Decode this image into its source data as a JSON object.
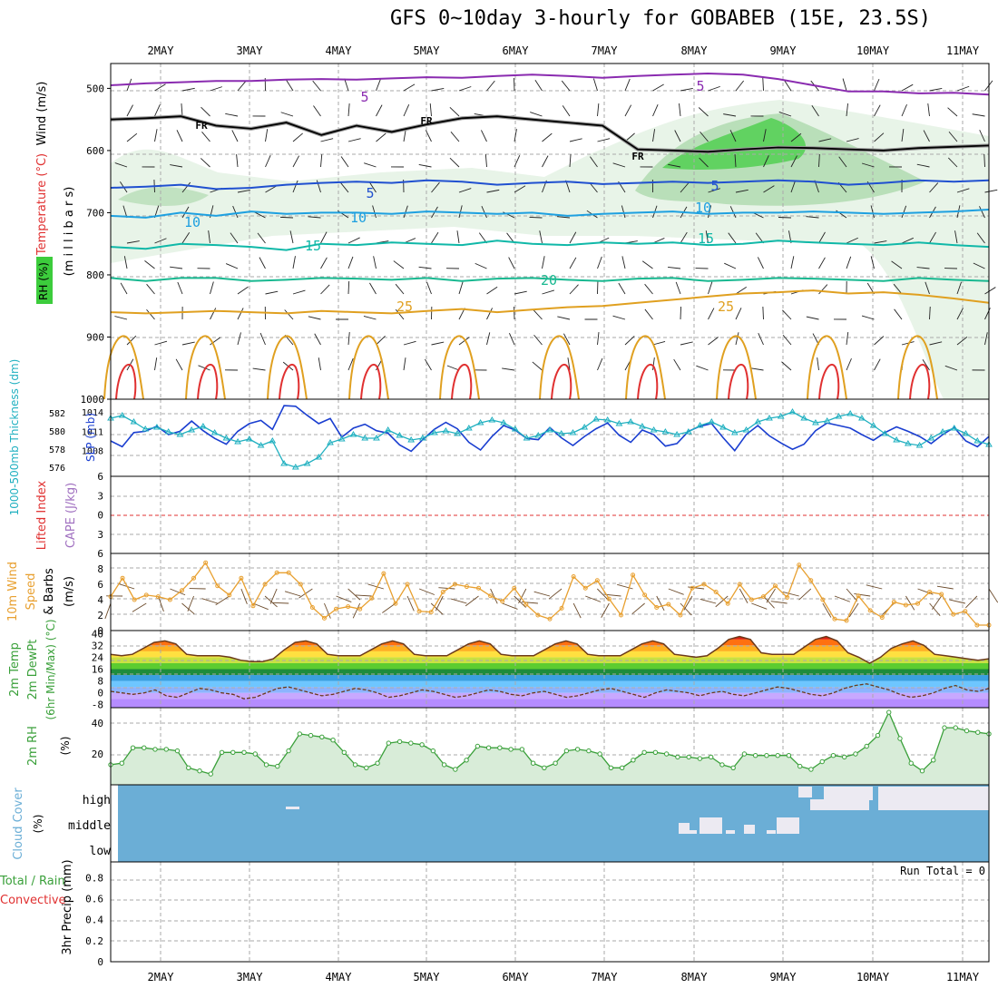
{
  "title": "GFS 0~10day 3-hourly for GOBABEB (15E, 23.5S)",
  "colors": {
    "purple": "#8a2bb0",
    "black": "#000000",
    "blue": "#2050d0",
    "lightblue": "#1ea0e0",
    "teal": "#10b8a8",
    "green": "#18b890",
    "orange": "#e0a020",
    "red": "#e03030",
    "rh_light": "#e8f4e8",
    "rh_mid": "#9ad09a",
    "rh_dark": "#3ccc3c",
    "cloud": "#6baed6",
    "slp": "#1a3ed0",
    "thickness": "#20b0c0",
    "wind": "#e8a030",
    "rh2m": "#3aa03a"
  },
  "chart_data": {
    "type": "meteogram",
    "date_labels": [
      "2MAY",
      "3MAY",
      "4MAY",
      "5MAY",
      "6MAY",
      "7MAY",
      "8MAY",
      "9MAY",
      "10MAY",
      "11MAY"
    ],
    "panels": {
      "upper": {
        "left_labels": {
          "wind": "Wind (m/s)",
          "temperature": "Temperature (°C)",
          "rh": "RH (%)",
          "pressure_axis": "(m i l l i b a r s)"
        },
        "y_ticks": [
          "500",
          "600",
          "700",
          "800",
          "900",
          "1000"
        ],
        "ylim": [
          460,
          1000
        ],
        "contour_labels": {
          "purple": [
            "5",
            "5"
          ],
          "freezing": [
            "FR",
            "FR",
            "FR"
          ],
          "blue": [
            "5",
            "5"
          ],
          "lightblue": [
            "10",
            "10",
            "10"
          ],
          "teal": [
            "15",
            "15"
          ],
          "green": [
            "20"
          ],
          "orange": [
            "25",
            "25"
          ]
        },
        "contours": [
          {
            "color": "purple",
            "values": [
              495,
              492,
              490,
              488,
              488,
              486,
              485,
              486,
              484,
              482,
              483,
              480,
              478,
              480,
              483,
              480,
              478,
              476,
              478,
              485,
              495,
              505,
              505,
              508,
              507,
              510
            ]
          },
          {
            "color": "blue",
            "values": [
              660,
              658,
              655,
              662,
              660,
              655,
              652,
              650,
              652,
              648,
              650,
              655,
              652,
              650,
              654,
              652,
              650,
              652,
              650,
              648,
              650,
              655,
              652,
              648,
              650,
              648
            ]
          },
          {
            "color": "lightblue",
            "values": [
              705,
              708,
              700,
              705,
              698,
              702,
              700,
              700,
              702,
              698,
              700,
              702,
              700,
              705,
              702,
              700,
              698,
              702,
              700,
              700,
              698,
              700,
              702,
              700,
              698,
              695
            ]
          },
          {
            "color": "teal",
            "values": [
              755,
              758,
              750,
              752,
              755,
              760,
              750,
              752,
              748,
              750,
              752,
              745,
              750,
              752,
              748,
              750,
              748,
              752,
              750,
              745,
              748,
              750,
              752,
              748,
              752,
              755
            ]
          },
          {
            "color": "green",
            "values": [
              805,
              810,
              805,
              805,
              810,
              808,
              805,
              806,
              808,
              805,
              810,
              806,
              805,
              808,
              810,
              806,
              805,
              810,
              808,
              805,
              806,
              808,
              810,
              805,
              808,
              810
            ]
          },
          {
            "color": "orange",
            "values": [
              860,
              862,
              860,
              858,
              860,
              862,
              858,
              860,
              862,
              858,
              855,
              860,
              856,
              852,
              850,
              845,
              840,
              835,
              830,
              828,
              825,
              830,
              828,
              832,
              838,
              845
            ]
          }
        ],
        "freezing_level": [
          550,
          548,
          545,
          560,
          565,
          555,
          575,
          560,
          570,
          558,
          548,
          545,
          550,
          555,
          560,
          598,
          600,
          602,
          598,
          595,
          596,
          598,
          600,
          596,
          594,
          592
        ]
      },
      "slp_thickness": {
        "left_labels": {
          "thickness": "1000-500mb Thickness (dm)",
          "slp": "SLP (mb)"
        },
        "thickness_ticks": [
          "576",
          "578",
          "580",
          "582"
        ],
        "slp_ticks": [
          "1008",
          "1011",
          "1014"
        ],
        "ylim_slp": [
          1004,
          1016
        ],
        "slp": [
          1009.5,
          1008.6,
          1010.8,
          1011.0,
          1011.8,
          1010.5,
          1011.0,
          1012.6,
          1011.1,
          1009.9,
          1009.0,
          1011.0,
          1012.2,
          1012.7,
          1011.3,
          1015.0,
          1014.9,
          1013.5,
          1012.2,
          1013.0,
          1010.1,
          1011.5,
          1012.1,
          1011.1,
          1010.7,
          1008.9,
          1007.9,
          1009.7,
          1011.3,
          1012.4,
          1011.4,
          1009.3,
          1008.1,
          1010.2,
          1011.9,
          1011.2,
          1009.9,
          1009.7,
          1011.6,
          1010.0,
          1008.8,
          1010.2,
          1011.4,
          1012.3,
          1010.4,
          1009.3,
          1011.2,
          1010.5,
          1008.7,
          1009.1,
          1011.0,
          1011.8,
          1012.2,
          1010.0,
          1008.0,
          1010.5,
          1011.9,
          1010.3,
          1009.2,
          1008.2,
          1009.0,
          1011.1,
          1012.3,
          1011.9,
          1011.5,
          1010.5,
          1009.6,
          1010.8,
          1011.7,
          1011.0,
          1010.2,
          1009.1,
          1010.5,
          1011.6,
          1009.5,
          1008.6,
          1010.2
        ],
        "thickness": [
          581.4,
          581.7,
          581.0,
          580.2,
          580.4,
          579.9,
          579.6,
          580.1,
          580.5,
          579.8,
          579.2,
          578.8,
          579.1,
          578.4,
          578.9,
          576.4,
          576.0,
          576.4,
          577.1,
          578.7,
          579.1,
          579.6,
          579.2,
          579.2,
          580.1,
          579.5,
          579.0,
          579.2,
          579.8,
          580.0,
          579.7,
          580.3,
          580.9,
          581.2,
          580.9,
          580.2,
          579.2,
          579.5,
          580.1,
          579.7,
          579.8,
          580.4,
          581.3,
          581.2,
          580.8,
          581.0,
          580.5,
          580.1,
          579.9,
          579.6,
          579.9,
          580.6,
          581.0,
          580.4,
          579.8,
          580.1,
          581.0,
          581.4,
          581.6,
          582.1,
          581.4,
          580.9,
          581.1,
          581.6,
          581.9,
          581.4,
          580.6,
          579.7,
          579.0,
          578.6,
          578.4,
          579.2,
          579.9,
          580.3,
          579.7,
          578.9,
          578.5
        ]
      },
      "cape_li": {
        "left_labels": {
          "li": "Lifted Index",
          "cape": "CAPE (J/kg)"
        },
        "y_ticks": [
          "6",
          "3",
          "0",
          "3",
          "6"
        ],
        "ylim": [
          -6,
          6
        ]
      },
      "wind10m": {
        "left_labels": {
          "title": "10m Wind",
          "speed": "Speed",
          "barbs": "& Barbs",
          "unit": "(m/s)"
        },
        "y_ticks": [
          "0",
          "2",
          "4",
          "6",
          "8"
        ],
        "ylim": [
          0,
          10
        ],
        "speed": [
          4.4,
          6.8,
          4.0,
          4.6,
          4.4,
          4.0,
          5.2,
          6.8,
          8.8,
          5.8,
          4.6,
          6.8,
          3.2,
          6.0,
          7.5,
          7.5,
          6.0,
          3.0,
          1.6,
          2.8,
          3.1,
          2.8,
          4.2,
          7.4,
          3.5,
          6.0,
          2.5,
          2.4,
          5.0,
          6.0,
          5.7,
          5.5,
          4.5,
          3.8,
          5.5,
          3.4,
          2.0,
          1.5,
          2.9,
          7.0,
          5.5,
          6.5,
          4.1,
          2.0,
          7.2,
          4.6,
          3.0,
          3.4,
          2.0,
          5.5,
          6.0,
          5.0,
          3.5,
          6.0,
          4.0,
          4.4,
          5.8,
          4.3,
          8.5,
          6.5,
          4.0,
          1.5,
          1.3,
          4.5,
          2.6,
          1.7,
          3.7,
          3.3,
          3.5,
          5.0,
          4.7,
          2.1,
          2.5,
          0.7,
          0.7
        ]
      },
      "temp2m": {
        "left_labels": {
          "temp": "2m Temp",
          "dewpt": "2m DewPt",
          "minmax": "(6hr Min/Max) (°C)"
        },
        "y_ticks": [
          "40",
          "32",
          "24",
          "16",
          "8",
          "0",
          "-8"
        ],
        "ylim": [
          -10,
          42
        ],
        "temp": [
          26,
          25,
          26,
          30,
          34,
          35,
          33,
          26,
          25,
          25,
          25,
          24,
          22,
          21,
          21,
          23,
          29,
          34,
          35,
          33,
          26,
          25,
          25,
          25,
          29,
          33,
          35,
          33,
          26,
          25,
          25,
          25,
          29,
          33,
          35,
          33,
          26,
          25,
          25,
          25,
          29,
          33,
          35,
          33,
          26,
          25,
          25,
          25,
          29,
          33,
          35,
          33,
          26,
          25,
          24,
          25,
          30,
          36,
          38,
          36,
          27,
          26,
          26,
          26,
          31,
          36,
          38,
          35,
          27,
          24,
          20,
          24,
          30,
          33,
          35,
          32,
          26,
          25,
          24,
          23,
          22,
          23
        ],
        "dewpoint": [
          1,
          0,
          -1,
          0,
          2,
          -2,
          -3,
          0,
          3,
          2,
          0,
          -1,
          -4,
          -3,
          0,
          3,
          4,
          2,
          0,
          -2,
          -1,
          1,
          3,
          2,
          0,
          -3,
          -2,
          0,
          2,
          1,
          -1,
          -3,
          -2,
          0,
          2,
          1,
          -1,
          -2,
          0,
          1,
          -1,
          -3,
          -2,
          0,
          2,
          3,
          1,
          -1,
          -3,
          0,
          2,
          1,
          0,
          -2,
          0,
          1,
          -1,
          -2,
          0,
          2,
          4,
          3,
          1,
          -1,
          -2,
          0,
          3,
          5,
          6,
          4,
          2,
          -1,
          -3,
          -2,
          0,
          3,
          5,
          2,
          1,
          3
        ]
      },
      "rh2m": {
        "left_labels": {
          "title": "2m RH",
          "unit": "(%)"
        },
        "y_ticks": [
          "20",
          "40"
        ],
        "ylim": [
          0,
          50
        ],
        "values": [
          13,
          14,
          24,
          24,
          23,
          23,
          22,
          11,
          9,
          7,
          21,
          21,
          21,
          20,
          13,
          12,
          22,
          33,
          32,
          31,
          29,
          21,
          13,
          11,
          14,
          27,
          28,
          27,
          26,
          22,
          13,
          10,
          16,
          25,
          24,
          24,
          23,
          23,
          14,
          11,
          14,
          22,
          23,
          22,
          20,
          11,
          11,
          16,
          21,
          21,
          20,
          18,
          18,
          17,
          18,
          13,
          11,
          20,
          19,
          19,
          19,
          19,
          12,
          10,
          15,
          19,
          18,
          20,
          25,
          32,
          47,
          30,
          14,
          9,
          16,
          37,
          37,
          35,
          34,
          33
        ]
      },
      "cloud": {
        "left_labels": {
          "title": "Cloud Cover",
          "unit": "(%)"
        },
        "levels": [
          "high",
          "middle",
          "low"
        ]
      },
      "precip": {
        "left_labels": {
          "total": "Total / Rain",
          "convective": "Convective",
          "unit": "3hr Precip (mm)"
        },
        "y_ticks": [
          "0",
          "0.2",
          "0.4",
          "0.6",
          "0.8"
        ],
        "ylim": [
          0,
          0.95
        ],
        "run_total": "Run Total = 0"
      }
    }
  }
}
